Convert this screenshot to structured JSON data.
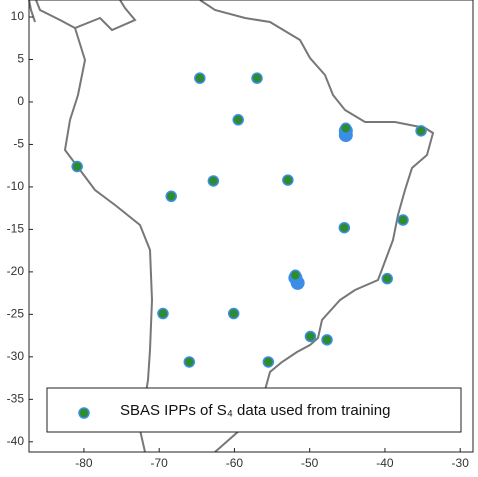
{
  "chart_data": {
    "type": "scatter",
    "xlim": [
      -87.3,
      -28.3
    ],
    "xticks": [
      -80,
      -70,
      -60,
      -50,
      -40,
      -30
    ],
    "ylim": [
      -41.2,
      12
    ],
    "yticks": [
      10,
      5,
      0,
      -5,
      -10,
      -15,
      -20,
      -25,
      -30,
      -35,
      -40
    ],
    "legend": "bottom",
    "series": [
      {
        "color": "#3a8ee6",
        "x": [
          -45.2,
          -45.2,
          -51.9,
          -51.6
        ],
        "values": [
          -3.4,
          -3.9,
          -20.7,
          -21.3
        ]
      },
      {
        "name": "SBAS IPPs of S₄ data used from training",
        "color": "#2e8b2e",
        "x": [
          -64.6,
          -57.0,
          -59.5,
          -45.2,
          -35.2,
          -80.9,
          -62.8,
          -52.9,
          -68.4,
          -37.6,
          -45.4,
          -51.9,
          -39.7,
          -69.5,
          -60.1,
          -66.0,
          -55.5,
          -49.9,
          -47.7
        ],
        "values": [
          2.8,
          2.8,
          -2.1,
          -3.1,
          -3.4,
          -7.6,
          -9.3,
          -9.2,
          -11.1,
          -13.9,
          -14.8,
          -20.4,
          -20.8,
          -24.9,
          -24.9,
          -30.6,
          -30.6,
          -27.6,
          -28.0
        ]
      }
    ]
  }
}
